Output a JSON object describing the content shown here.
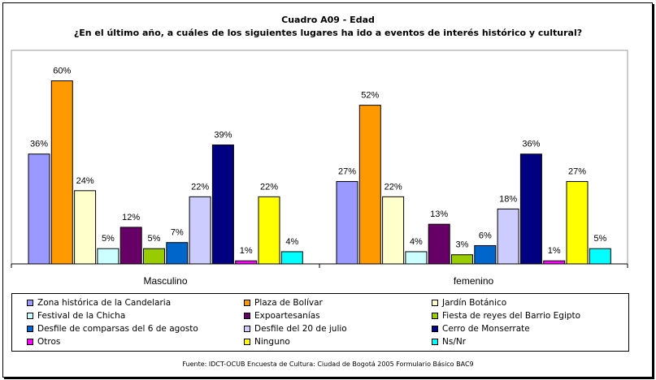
{
  "title": "Cuadro A09 - Edad",
  "subtitle": "¿En el último año, a cuáles de los siguientes lugares ha ido a eventos de interés histórico y cultural?",
  "source": "Fuente: IDCT-OCUB Encuesta de Cultura: Ciudad de Bogotá 2005 Formulario Básico BAC9",
  "chart_data": {
    "type": "bar",
    "categories": [
      "Masculino",
      "femenino"
    ],
    "ylim": [
      0,
      70
    ],
    "grid": false,
    "legend_position": "bottom",
    "value_suffix": "%",
    "series": [
      {
        "name": "Zona histórica de la Candelaria",
        "color": "#9999ff",
        "values": [
          36,
          27
        ]
      },
      {
        "name": "Plaza de Bolívar",
        "color": "#ff9900",
        "values": [
          60,
          52
        ]
      },
      {
        "name": "Jardín Botánico",
        "color": "#ffffcc",
        "values": [
          24,
          22
        ]
      },
      {
        "name": "Festival de la Chicha",
        "color": "#ccffff",
        "values": [
          5,
          4
        ]
      },
      {
        "name": "Expoartesanías",
        "color": "#660066",
        "values": [
          12,
          13
        ]
      },
      {
        "name": "Fiesta de reyes del Barrio Egipto",
        "color": "#99cc00",
        "values": [
          5,
          3
        ]
      },
      {
        "name": "Desfile de comparsas del 6 de agosto",
        "color": "#0066cc",
        "values": [
          7,
          6
        ]
      },
      {
        "name": "Desfile del 20 de julio",
        "color": "#ccccff",
        "values": [
          22,
          18
        ]
      },
      {
        "name": "Cerro de Monserrate",
        "color": "#000080",
        "values": [
          39,
          36
        ]
      },
      {
        "name": "Otros",
        "color": "#ff00ff",
        "values": [
          1,
          1
        ]
      },
      {
        "name": "Ninguno",
        "color": "#ffff00",
        "values": [
          22,
          27
        ]
      },
      {
        "name": "Ns/Nr",
        "color": "#00ffff",
        "values": [
          4,
          5
        ]
      }
    ]
  }
}
